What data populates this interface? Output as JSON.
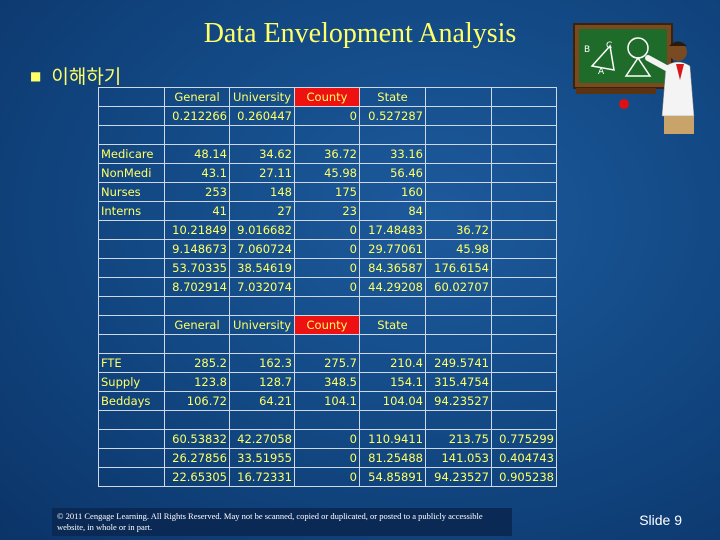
{
  "title": "Data Envelopment Analysis",
  "bullet": "이해하기",
  "copyright": "© 2011 Cengage Learning. All Rights Reserved. May not be scanned, copied or duplicated, or posted to a publicly accessible website, in whole or in part.",
  "slide_label": "Slide 9",
  "colors": {
    "title": "#ffff66",
    "highlight": "#ee1111",
    "background": "#134a86"
  },
  "clipart": {
    "icon": "teacher-at-chalkboard-icon",
    "board_letters": [
      "B",
      "C",
      "A"
    ]
  },
  "table": {
    "rows": [
      [
        "",
        "General",
        "University",
        "County",
        "State",
        "",
        ""
      ],
      [
        "",
        "0.212266",
        "0.260447",
        "0",
        "0.527287",
        "",
        ""
      ],
      [
        "",
        "",
        "",
        "",
        "",
        "",
        ""
      ],
      [
        "Medicare",
        "48.14",
        "34.62",
        "36.72",
        "33.16",
        "",
        ""
      ],
      [
        "NonMedi",
        "43.1",
        "27.11",
        "45.98",
        "56.46",
        "",
        ""
      ],
      [
        "Nurses",
        "253",
        "148",
        "175",
        "160",
        "",
        ""
      ],
      [
        "Interns",
        "41",
        "27",
        "23",
        "84",
        "",
        ""
      ],
      [
        "",
        "10.21849",
        "9.016682",
        "0",
        "17.48483",
        "36.72",
        ""
      ],
      [
        "",
        "9.148673",
        "7.060724",
        "0",
        "29.77061",
        "45.98",
        ""
      ],
      [
        "",
        "53.70335",
        "38.54619",
        "0",
        "84.36587",
        "176.6154",
        ""
      ],
      [
        "",
        "8.702914",
        "7.032074",
        "0",
        "44.29208",
        "60.02707",
        ""
      ],
      [
        "",
        "",
        "",
        "",
        "",
        "",
        ""
      ],
      [
        "",
        "General",
        "University",
        "County",
        "State",
        "",
        ""
      ],
      [
        "",
        "",
        "",
        "",
        "",
        "",
        ""
      ],
      [
        "FTE",
        "285.2",
        "162.3",
        "275.7",
        "210.4",
        "249.5741",
        ""
      ],
      [
        "Supply",
        "123.8",
        "128.7",
        "348.5",
        "154.1",
        "315.4754",
        ""
      ],
      [
        "Beddays",
        "106.72",
        "64.21",
        "104.1",
        "104.04",
        "94.23527",
        ""
      ],
      [
        "",
        "",
        "",
        "",
        "",
        "",
        ""
      ],
      [
        "",
        "60.53832",
        "42.27058",
        "0",
        "110.9411",
        "213.75",
        "0.775299"
      ],
      [
        "",
        "26.27856",
        "33.51955",
        "0",
        "81.25488",
        "141.053",
        "0.404743"
      ],
      [
        "",
        "22.65305",
        "16.72331",
        "0",
        "54.85891",
        "94.23527",
        "0.905238"
      ]
    ],
    "header_rows": [
      0,
      12
    ],
    "highlight_column": 3
  }
}
